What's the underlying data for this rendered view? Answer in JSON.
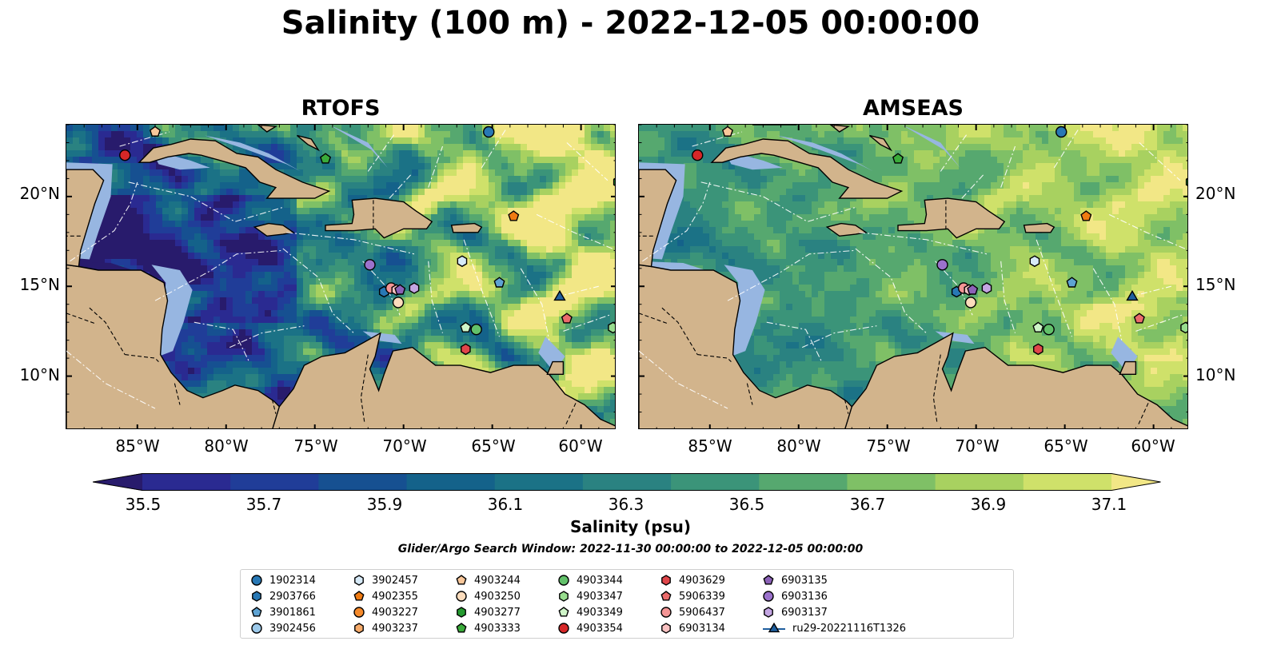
{
  "title": "Salinity (100 m) - 2022-12-05 00:00:00",
  "panels": [
    {
      "title": "RTOFS",
      "scheme": "rtofs"
    },
    {
      "title": "AMSEAS",
      "scheme": "amseas"
    }
  ],
  "lon_ticks": [
    "85°W",
    "80°W",
    "75°W",
    "70°W",
    "65°W",
    "60°W"
  ],
  "lat_ticks": [
    "20°N",
    "15°N",
    "10°N"
  ],
  "colorbar": {
    "label": "Salinity (psu)",
    "ticks": [
      "35.5",
      "35.7",
      "35.9",
      "36.1",
      "36.3",
      "36.5",
      "36.7",
      "36.9",
      "37.1"
    ],
    "colors": [
      "#281b6c",
      "#2a2a91",
      "#203d98",
      "#165091",
      "#14628a",
      "#1b7286",
      "#2a8281",
      "#3b9479",
      "#56a86f",
      "#7fc066",
      "#a8d160",
      "#cfe16a",
      "#f2e786"
    ],
    "extend": "both"
  },
  "search_window": "Glider/Argo Search Window: 2022-11-30 00:00:00 to 2022-12-05 00:00:00",
  "colors": {
    "land": "#d2b48c",
    "shallow_water": "#97b6e1",
    "deep_water_left": "#281b6c"
  },
  "legend": [
    {
      "label": "1902314",
      "marker": "circle",
      "color": "#2878b5"
    },
    {
      "label": "2903766",
      "marker": "hexagon",
      "color": "#2878b5"
    },
    {
      "label": "3901861",
      "marker": "pentagon",
      "color": "#5ea3d3"
    },
    {
      "label": "3902456",
      "marker": "circle",
      "color": "#9cc9ea"
    },
    {
      "label": "3902457",
      "marker": "hexagon",
      "color": "#d7eaf8"
    },
    {
      "label": "4902355",
      "marker": "pentagon",
      "color": "#f07b12"
    },
    {
      "label": "4903227",
      "marker": "circle",
      "color": "#f58a2b"
    },
    {
      "label": "4903237",
      "marker": "hexagon",
      "color": "#f7ab6a"
    },
    {
      "label": "4903244",
      "marker": "pentagon",
      "color": "#f9c79a"
    },
    {
      "label": "4903250",
      "marker": "circle",
      "color": "#fcdcbc"
    },
    {
      "label": "4903277",
      "marker": "hexagon",
      "color": "#259b30"
    },
    {
      "label": "4903333",
      "marker": "pentagon",
      "color": "#3aab3a"
    },
    {
      "label": "4903344",
      "marker": "circle",
      "color": "#62c16a"
    },
    {
      "label": "4903347",
      "marker": "hexagon",
      "color": "#98dd8e"
    },
    {
      "label": "4903349",
      "marker": "pentagon",
      "color": "#cff5c8"
    },
    {
      "label": "4903354",
      "marker": "circle",
      "color": "#d62728"
    },
    {
      "label": "4903629",
      "marker": "hexagon",
      "color": "#e0464a"
    },
    {
      "label": "5906339",
      "marker": "pentagon",
      "color": "#eb6b6b"
    },
    {
      "label": "5906437",
      "marker": "circle",
      "color": "#f49595"
    },
    {
      "label": "6903134",
      "marker": "hexagon",
      "color": "#f9c1c1"
    },
    {
      "label": "6903135",
      "marker": "pentagon",
      "color": "#8c62b8"
    },
    {
      "label": "6903136",
      "marker": "circle",
      "color": "#9b72cc"
    },
    {
      "label": "6903137",
      "marker": "hexagon",
      "color": "#c3a5e2"
    },
    {
      "label": "ru29-20221116T1326",
      "marker": "triangle",
      "color": "#1f5f9f"
    }
  ],
  "markers": [
    {
      "label": "1902314",
      "lon": -65.2,
      "lat": 23.6
    },
    {
      "label": "2903766",
      "lon": -71.1,
      "lat": 14.7
    },
    {
      "label": "3901861",
      "lon": -64.6,
      "lat": 15.2
    },
    {
      "label": "3902457",
      "lon": -66.7,
      "lat": 16.4
    },
    {
      "label": "4902355",
      "lon": -63.8,
      "lat": 18.9
    },
    {
      "label": "4903244",
      "lon": -84.0,
      "lat": 23.6
    },
    {
      "label": "4903250",
      "lon": -70.3,
      "lat": 14.1
    },
    {
      "label": "4903277",
      "lon": -57.9,
      "lat": 20.8
    },
    {
      "label": "4903333",
      "lon": -74.4,
      "lat": 22.1
    },
    {
      "label": "4903344",
      "lon": -65.9,
      "lat": 12.6
    },
    {
      "label": "4903347",
      "lon": -58.2,
      "lat": 12.7
    },
    {
      "label": "4903349",
      "lon": -66.5,
      "lat": 12.7
    },
    {
      "label": "4903354",
      "lon": -85.7,
      "lat": 22.3
    },
    {
      "label": "4903629",
      "lon": -66.5,
      "lat": 11.5
    },
    {
      "label": "5906339",
      "lon": -60.8,
      "lat": 13.2
    },
    {
      "label": "5906437",
      "lon": -70.7,
      "lat": 14.9
    },
    {
      "label": "6903134",
      "lon": -70.4,
      "lat": 14.8
    },
    {
      "label": "6903135",
      "lon": -70.2,
      "lat": 14.8
    },
    {
      "label": "6903136",
      "lon": -71.9,
      "lat": 16.2
    },
    {
      "label": "6903137",
      "lon": -69.4,
      "lat": 14.9
    },
    {
      "label": "ru29-20221116T1326",
      "lon": -61.2,
      "lat": 14.4
    }
  ]
}
